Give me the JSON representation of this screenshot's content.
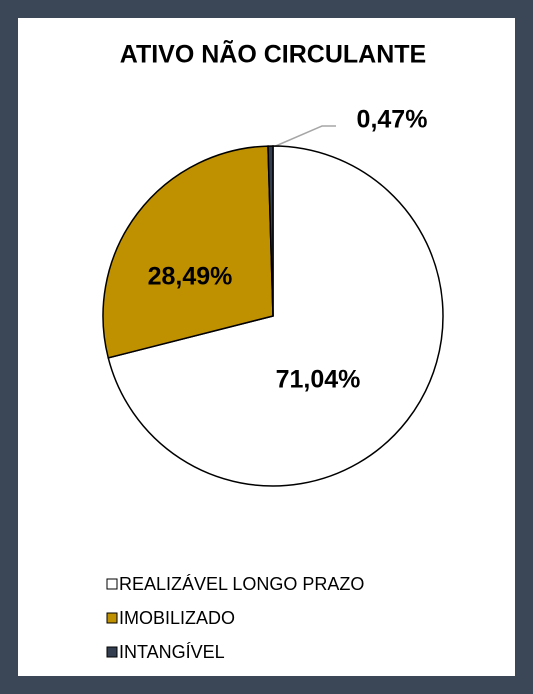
{
  "chart_data": {
    "type": "pie",
    "title": "ATIVO NÃO CIRCULANTE",
    "categories": [
      "REALIZÁVEL LONGO PRAZO",
      "IMOBILIZADO",
      "INTANGÍVEL"
    ],
    "values": [
      71.04,
      28.49,
      0.47
    ],
    "value_labels": [
      "71,04%",
      "28,49%",
      "0,47%"
    ],
    "colors": [
      "#ffffff",
      "#bf9000",
      "#333f50"
    ]
  }
}
